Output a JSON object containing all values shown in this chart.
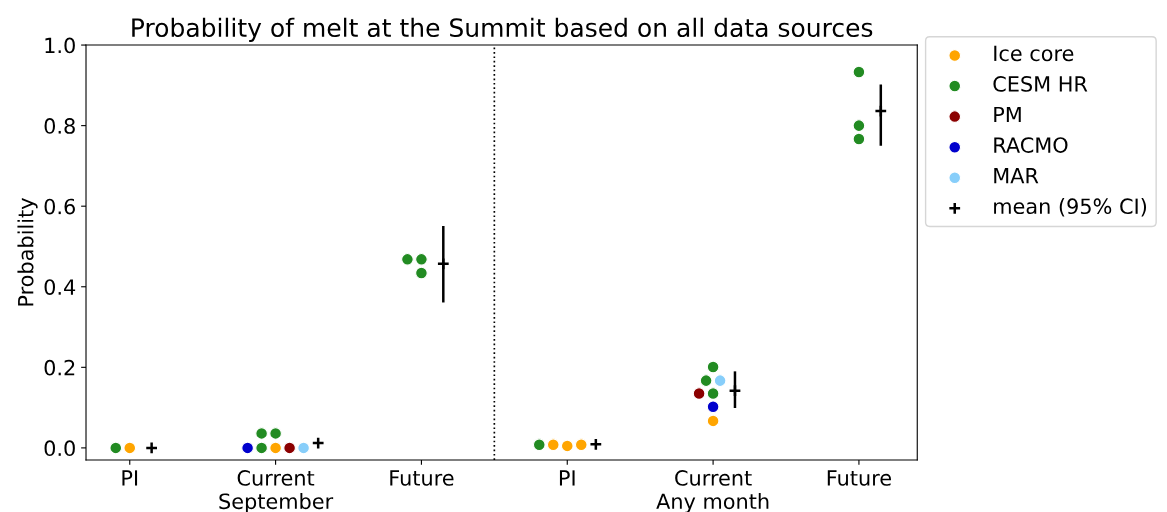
{
  "chart_data": {
    "type": "scatter",
    "title": "Probability of melt at the Summit based on all data sources",
    "ylabel": "Probability",
    "categories": [
      "PI",
      "Current\nSeptember",
      "Future",
      "PI",
      "Current\nAny month",
      "Future"
    ],
    "ylim": [
      -0.03,
      1.0
    ],
    "yticks": [
      {
        "value": 0,
        "label": "0.0"
      },
      {
        "value": 0.2,
        "label": "0.2"
      },
      {
        "value": 0.4,
        "label": "0.4"
      },
      {
        "value": 0.6,
        "label": "0.6"
      },
      {
        "value": 0.8,
        "label": "0.8"
      },
      {
        "value": 1.0,
        "label": "1.0"
      }
    ],
    "legend": "top right",
    "marker": "circle",
    "series": [
      {
        "name": "Ice core",
        "color": "#ffa500",
        "values": [
          0,
          0,
          null,
          0.008,
          0.067,
          null
        ]
      },
      {
        "color": "#ffa500",
        "values": [
          null,
          null,
          null,
          0.005,
          null,
          null
        ]
      },
      {
        "color": "#ffa500",
        "values": [
          null,
          null,
          null,
          0.008,
          null,
          null
        ]
      },
      {
        "name": "CESM HR",
        "color": "#228b22",
        "values": [
          0,
          0.036,
          0.468,
          0.008,
          0.201,
          0.933
        ]
      },
      {
        "color": "#228b22",
        "values": [
          null,
          0.036,
          0.468,
          null,
          0.167,
          0.8
        ]
      },
      {
        "color": "#228b22",
        "values": [
          null,
          0,
          0.434,
          null,
          0.135,
          0.767
        ]
      },
      {
        "name": "PM",
        "color": "#8b0000",
        "values": [
          null,
          0,
          null,
          null,
          0.135,
          null
        ]
      },
      {
        "name": "RACMO",
        "color": "#0000cd",
        "values": [
          null,
          0,
          null,
          null,
          0.102,
          null
        ]
      },
      {
        "name": "MAR",
        "color": "#87cefa",
        "values": [
          null,
          0,
          null,
          null,
          0.167,
          null
        ]
      },
      {
        "name": "mean (95% CI)",
        "color": "#000000",
        "marker": "cross",
        "values": [
          0,
          0.012,
          0.457,
          0.009,
          0.142,
          0.836
        ],
        "errors": [
          null,
          null,
          [
            0.361,
            0.551
          ],
          null,
          [
            0.099,
            0.19
          ],
          [
            0.75,
            0.902
          ]
        ]
      }
    ]
  }
}
